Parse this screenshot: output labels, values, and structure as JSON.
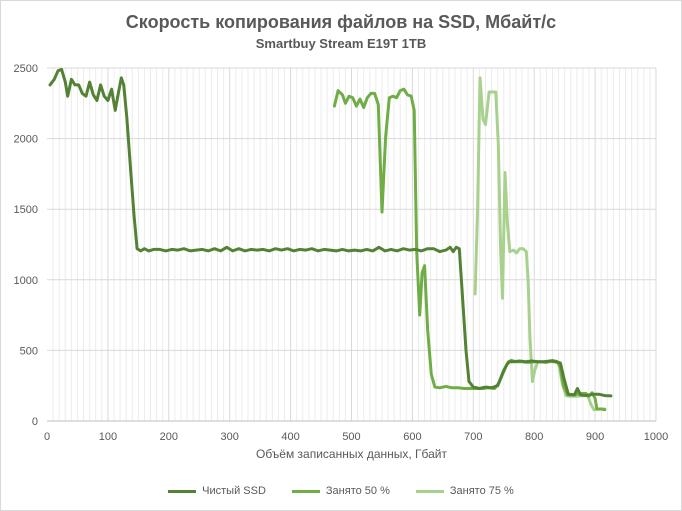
{
  "chart_data": {
    "type": "line",
    "title": "Скорость копирования файлов на SSD, Мбайт/с",
    "subtitle": "Smartbuy Stream E19T 1TB",
    "xlabel": "Объём записанных данных, Гбайт",
    "ylabel": "",
    "xlim": [
      0,
      1000
    ],
    "ylim": [
      0,
      2500
    ],
    "xticks": [
      0,
      100,
      200,
      300,
      400,
      500,
      600,
      700,
      800,
      900,
      1000
    ],
    "yticks": [
      0,
      500,
      1000,
      1500,
      2000,
      2500
    ],
    "grid": true,
    "legend_position": "bottom",
    "series": [
      {
        "name": "Чистый SSD",
        "color": "#548235",
        "points": [
          [
            5,
            2380
          ],
          [
            12,
            2420
          ],
          [
            18,
            2480
          ],
          [
            24,
            2490
          ],
          [
            30,
            2400
          ],
          [
            34,
            2300
          ],
          [
            40,
            2420
          ],
          [
            46,
            2380
          ],
          [
            52,
            2380
          ],
          [
            58,
            2320
          ],
          [
            64,
            2300
          ],
          [
            70,
            2400
          ],
          [
            76,
            2310
          ],
          [
            82,
            2270
          ],
          [
            88,
            2380
          ],
          [
            94,
            2300
          ],
          [
            100,
            2270
          ],
          [
            106,
            2350
          ],
          [
            112,
            2200
          ],
          [
            117,
            2320
          ],
          [
            122,
            2430
          ],
          [
            126,
            2380
          ],
          [
            131,
            2150
          ],
          [
            137,
            1800
          ],
          [
            143,
            1450
          ],
          [
            148,
            1220
          ],
          [
            154,
            1205
          ],
          [
            160,
            1220
          ],
          [
            167,
            1205
          ],
          [
            175,
            1215
          ],
          [
            185,
            1215
          ],
          [
            195,
            1205
          ],
          [
            205,
            1215
          ],
          [
            215,
            1210
          ],
          [
            225,
            1220
          ],
          [
            235,
            1205
          ],
          [
            245,
            1210
          ],
          [
            255,
            1215
          ],
          [
            265,
            1205
          ],
          [
            275,
            1220
          ],
          [
            285,
            1205
          ],
          [
            295,
            1230
          ],
          [
            305,
            1205
          ],
          [
            315,
            1220
          ],
          [
            325,
            1205
          ],
          [
            335,
            1215
          ],
          [
            345,
            1210
          ],
          [
            355,
            1215
          ],
          [
            365,
            1205
          ],
          [
            375,
            1220
          ],
          [
            385,
            1210
          ],
          [
            395,
            1220
          ],
          [
            405,
            1205
          ],
          [
            415,
            1215
          ],
          [
            425,
            1210
          ],
          [
            435,
            1220
          ],
          [
            445,
            1205
          ],
          [
            455,
            1215
          ],
          [
            465,
            1210
          ],
          [
            475,
            1205
          ],
          [
            485,
            1215
          ],
          [
            495,
            1205
          ],
          [
            505,
            1210
          ],
          [
            515,
            1205
          ],
          [
            525,
            1215
          ],
          [
            535,
            1205
          ],
          [
            545,
            1230
          ],
          [
            555,
            1205
          ],
          [
            565,
            1215
          ],
          [
            575,
            1205
          ],
          [
            585,
            1220
          ],
          [
            595,
            1210
          ],
          [
            605,
            1215
          ],
          [
            615,
            1205
          ],
          [
            625,
            1220
          ],
          [
            635,
            1220
          ],
          [
            645,
            1200
          ],
          [
            655,
            1210
          ],
          [
            662,
            1230
          ],
          [
            667,
            1200
          ],
          [
            672,
            1230
          ],
          [
            677,
            1220
          ],
          [
            682,
            900
          ],
          [
            688,
            500
          ],
          [
            693,
            280
          ],
          [
            700,
            240
          ],
          [
            710,
            230
          ],
          [
            720,
            240
          ],
          [
            730,
            235
          ],
          [
            740,
            250
          ],
          [
            750,
            360
          ],
          [
            758,
            420
          ],
          [
            766,
            420
          ],
          [
            776,
            425
          ],
          [
            786,
            420
          ],
          [
            796,
            425
          ],
          [
            806,
            420
          ],
          [
            816,
            420
          ],
          [
            826,
            425
          ],
          [
            836,
            420
          ],
          [
            843,
            410
          ],
          [
            849,
            300
          ],
          [
            856,
            190
          ],
          [
            866,
            185
          ],
          [
            871,
            230
          ],
          [
            876,
            185
          ],
          [
            886,
            180
          ],
          [
            896,
            190
          ],
          [
            906,
            190
          ],
          [
            916,
            180
          ],
          [
            926,
            178
          ]
        ]
      },
      {
        "name": "Занято 50 %",
        "color": "#70ad47",
        "points": [
          [
            472,
            2230
          ],
          [
            478,
            2340
          ],
          [
            485,
            2310
          ],
          [
            490,
            2250
          ],
          [
            496,
            2300
          ],
          [
            502,
            2290
          ],
          [
            508,
            2230
          ],
          [
            514,
            2280
          ],
          [
            520,
            2220
          ],
          [
            526,
            2290
          ],
          [
            532,
            2320
          ],
          [
            538,
            2320
          ],
          [
            544,
            2240
          ],
          [
            550,
            1480
          ],
          [
            556,
            2010
          ],
          [
            562,
            2290
          ],
          [
            568,
            2300
          ],
          [
            574,
            2290
          ],
          [
            580,
            2340
          ],
          [
            586,
            2350
          ],
          [
            592,
            2310
          ],
          [
            598,
            2300
          ],
          [
            603,
            2200
          ],
          [
            607,
            1200
          ],
          [
            612,
            750
          ],
          [
            616,
            1050
          ],
          [
            620,
            1100
          ],
          [
            625,
            650
          ],
          [
            631,
            330
          ],
          [
            637,
            240
          ],
          [
            645,
            235
          ],
          [
            655,
            245
          ],
          [
            665,
            235
          ],
          [
            675,
            235
          ],
          [
            685,
            230
          ],
          [
            695,
            230
          ],
          [
            705,
            230
          ],
          [
            715,
            230
          ],
          [
            725,
            235
          ],
          [
            735,
            230
          ],
          [
            742,
            270
          ],
          [
            748,
            330
          ],
          [
            755,
            400
          ],
          [
            762,
            430
          ],
          [
            770,
            420
          ],
          [
            780,
            420
          ],
          [
            790,
            415
          ],
          [
            800,
            420
          ],
          [
            810,
            420
          ],
          [
            820,
            415
          ],
          [
            830,
            430
          ],
          [
            838,
            420
          ],
          [
            843,
            380
          ],
          [
            848,
            250
          ],
          [
            855,
            185
          ],
          [
            865,
            185
          ],
          [
            875,
            195
          ],
          [
            885,
            195
          ],
          [
            890,
            175
          ],
          [
            895,
            200
          ],
          [
            900,
            160
          ],
          [
            903,
            85
          ],
          [
            910,
            85
          ],
          [
            916,
            80
          ]
        ]
      },
      {
        "name": "Занято 75 %",
        "color": "#a9d18e",
        "points": [
          [
            703,
            900
          ],
          [
            707,
            1500
          ],
          [
            711,
            2430
          ],
          [
            716,
            2140
          ],
          [
            720,
            2100
          ],
          [
            726,
            2330
          ],
          [
            732,
            2330
          ],
          [
            737,
            2330
          ],
          [
            741,
            1960
          ],
          [
            745,
            1200
          ],
          [
            748,
            870
          ],
          [
            752,
            1760
          ],
          [
            756,
            1400
          ],
          [
            760,
            1200
          ],
          [
            766,
            1210
          ],
          [
            771,
            1190
          ],
          [
            776,
            1220
          ],
          [
            782,
            1220
          ],
          [
            787,
            1200
          ],
          [
            790,
            1000
          ],
          [
            793,
            600
          ],
          [
            797,
            280
          ],
          [
            801,
            360
          ],
          [
            806,
            420
          ],
          [
            812,
            420
          ],
          [
            822,
            420
          ],
          [
            832,
            420
          ],
          [
            840,
            410
          ],
          [
            846,
            270
          ],
          [
            852,
            180
          ],
          [
            860,
            175
          ],
          [
            870,
            175
          ],
          [
            880,
            180
          ],
          [
            888,
            180
          ],
          [
            893,
            120
          ],
          [
            898,
            80
          ],
          [
            906,
            85
          ],
          [
            916,
            85
          ]
        ]
      }
    ]
  }
}
